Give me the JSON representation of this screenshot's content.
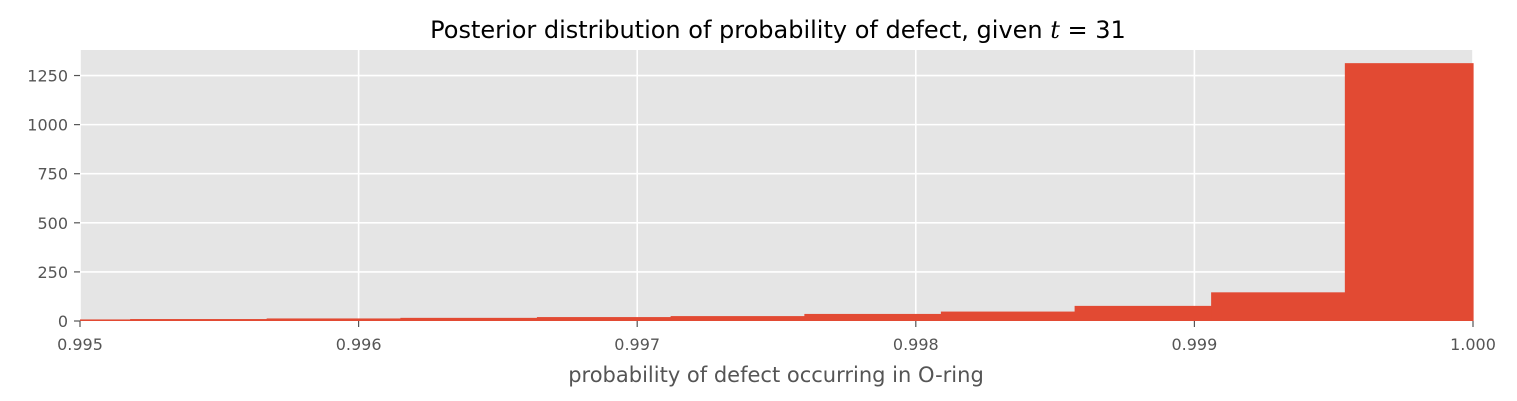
{
  "chart_data": {
    "type": "bar",
    "title_prefix": "Posterior distribution of probability of defect, given ",
    "title_var": "t",
    "title_eq": " = 31",
    "xlabel": "probability of defect occurring in O-ring",
    "ylabel": "",
    "xlim": [
      0.995,
      1.0
    ],
    "ylim": [
      0,
      1380
    ],
    "xticks": [
      0.995,
      0.996,
      0.997,
      0.998,
      0.999,
      1.0
    ],
    "xtick_labels": [
      "0.995",
      "0.996",
      "0.997",
      "0.998",
      "0.999",
      "1.000"
    ],
    "yticks": [
      0,
      250,
      500,
      750,
      1000,
      1250
    ],
    "ytick_labels": [
      "0",
      "250",
      "500",
      "750",
      "1000",
      "1250"
    ],
    "grid": true,
    "bins": [
      {
        "x0": 0.995,
        "x1": 0.99518,
        "value": 8
      },
      {
        "x0": 0.99518,
        "x1": 0.99567,
        "value": 10
      },
      {
        "x0": 0.99567,
        "x1": 0.99615,
        "value": 13
      },
      {
        "x0": 0.99615,
        "x1": 0.99664,
        "value": 16
      },
      {
        "x0": 0.99664,
        "x1": 0.99712,
        "value": 20
      },
      {
        "x0": 0.99712,
        "x1": 0.9976,
        "value": 25
      },
      {
        "x0": 0.9976,
        "x1": 0.99809,
        "value": 36
      },
      {
        "x0": 0.99809,
        "x1": 0.99857,
        "value": 48
      },
      {
        "x0": 0.99857,
        "x1": 0.99906,
        "value": 77
      },
      {
        "x0": 0.99906,
        "x1": 0.99954,
        "value": 146
      },
      {
        "x0": 0.99954,
        "x1": 1.0,
        "value": 1313
      }
    ],
    "colors": {
      "bar": "#E24A33",
      "background": "#E5E5E5",
      "grid": "#FFFFFF",
      "tick": "#555555",
      "title": "#000000"
    }
  }
}
